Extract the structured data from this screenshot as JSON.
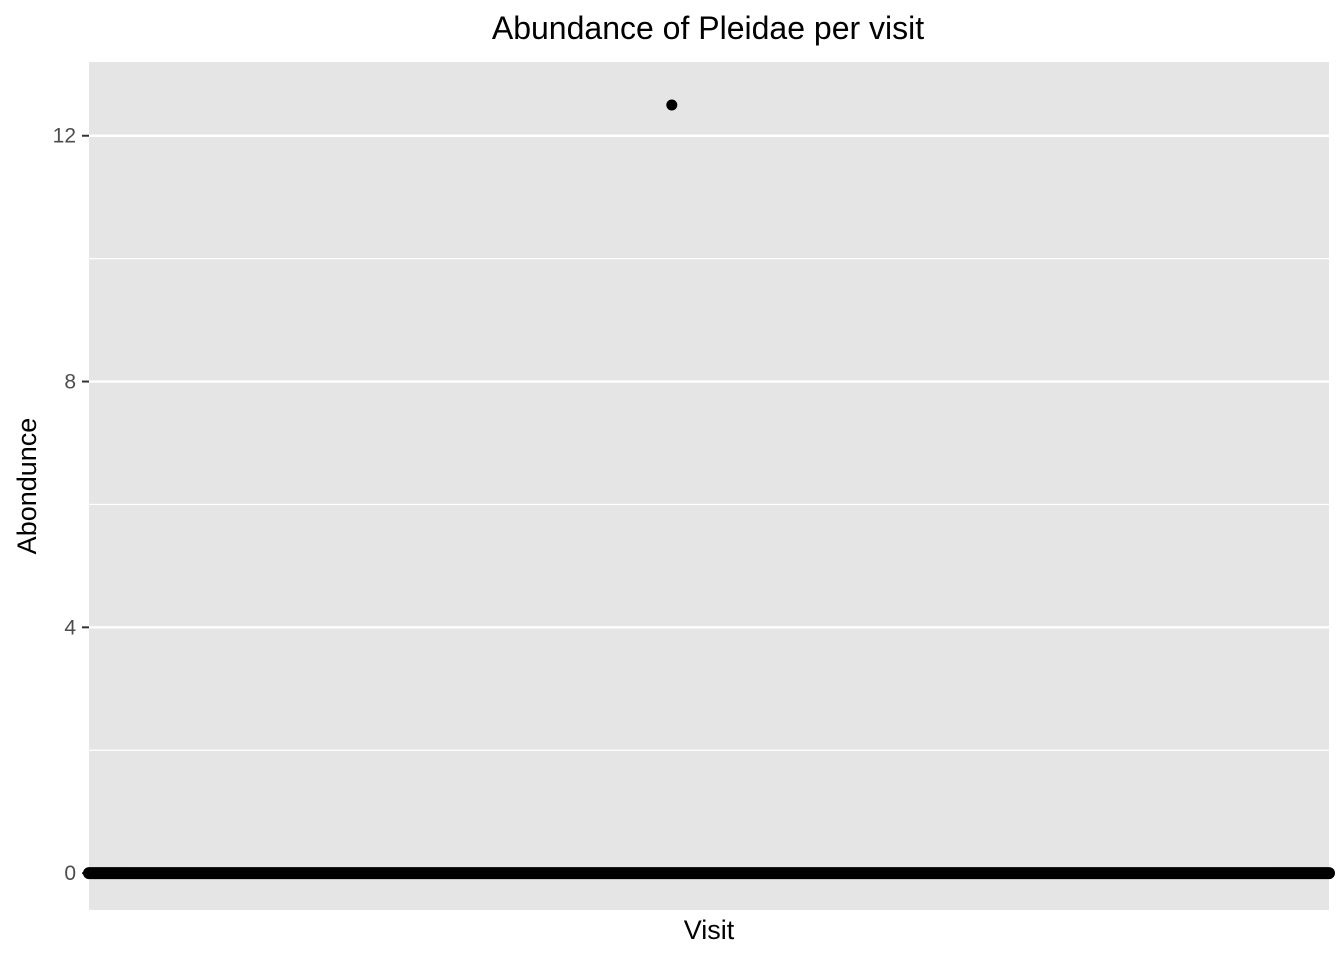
{
  "chart_data": {
    "type": "scatter",
    "title": "Abundance of Pleidae per visit",
    "xlabel": "Visit",
    "ylabel": "Abondunce",
    "ylim": [
      -0.6,
      13.2
    ],
    "y_ticks": [
      0,
      4,
      8,
      12
    ],
    "x_ticks": [],
    "grid": true,
    "legend": "none",
    "colors": {
      "panel": "#e5e5e5",
      "grid": "#ffffff",
      "point": "#000000",
      "tick": "#333333"
    },
    "outlier": {
      "visit_fraction": 0.47,
      "value": 12.5
    },
    "baseline": {
      "visit_start_fraction": 0.0,
      "visit_end_fraction": 1.0,
      "value": 0
    }
  }
}
